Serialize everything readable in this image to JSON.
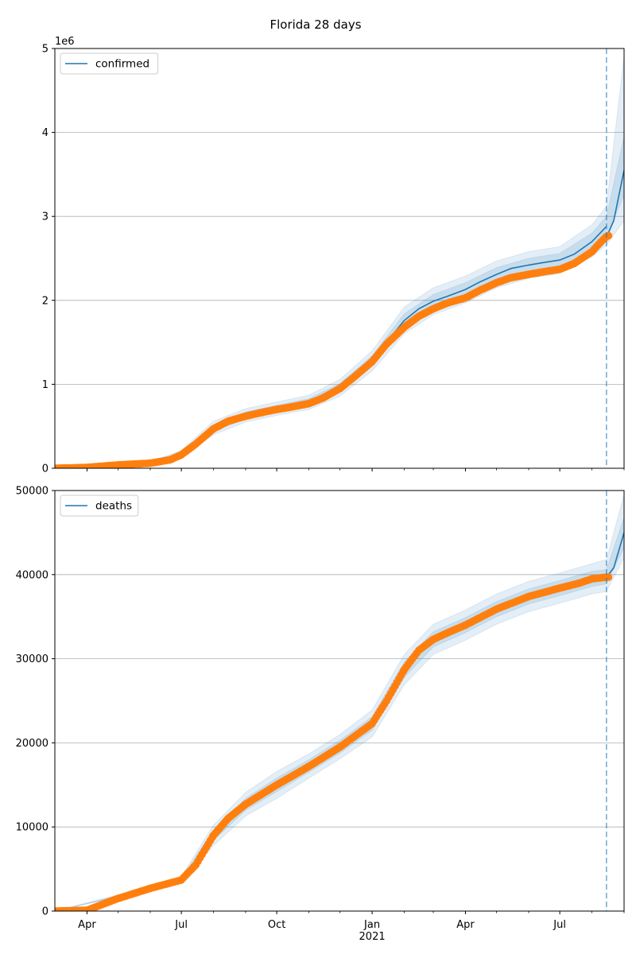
{
  "figure_title": "Florida 28 days",
  "x_axis": {
    "start": "2020-03-01",
    "end": "2021-09-01",
    "major_ticks": [
      {
        "date": "2020-04-01",
        "label": "Apr"
      },
      {
        "date": "2020-07-01",
        "label": "Jul"
      },
      {
        "date": "2020-10-01",
        "label": "Oct"
      },
      {
        "date": "2021-01-01",
        "label": "Jan"
      },
      {
        "date": "2021-04-01",
        "label": "Apr"
      },
      {
        "date": "2021-07-01",
        "label": "Jul"
      }
    ],
    "year_label": "2021",
    "year_label_date": "2021-01-01",
    "minor_tick_dates": [
      "2020-05-01",
      "2020-06-01",
      "2020-08-01",
      "2020-09-01",
      "2020-11-01",
      "2020-12-01",
      "2021-02-01",
      "2021-03-01",
      "2021-05-01",
      "2021-06-01",
      "2021-08-01",
      "2021-09-01"
    ]
  },
  "forecast_start": "2021-08-15",
  "colors": {
    "model_line": "#1f77b4",
    "band": "#1f77b4",
    "observed": "#ff7f0e",
    "forecast_line": "#1f77b4",
    "grid": "#b0b0b0",
    "axis": "#000000"
  },
  "chart_data": [
    {
      "type": "line",
      "name": "confirmed",
      "legend": "confirmed",
      "y_multiplier_label": "1e6",
      "ylim": [
        0,
        5
      ],
      "yticks": [
        0,
        1,
        2,
        3,
        4,
        5
      ],
      "ytick_labels": [
        "0",
        "1",
        "2",
        "3",
        "4",
        "5"
      ],
      "grid": "horizontal",
      "legend_placement": "top-left",
      "model": [
        [
          "2020-03-01",
          0.0
        ],
        [
          "2020-04-01",
          0.01
        ],
        [
          "2020-05-01",
          0.04
        ],
        [
          "2020-06-01",
          0.06
        ],
        [
          "2020-06-20",
          0.1
        ],
        [
          "2020-07-01",
          0.17
        ],
        [
          "2020-07-15",
          0.3
        ],
        [
          "2020-08-01",
          0.48
        ],
        [
          "2020-08-15",
          0.57
        ],
        [
          "2020-09-01",
          0.63
        ],
        [
          "2020-09-15",
          0.67
        ],
        [
          "2020-10-01",
          0.71
        ],
        [
          "2020-10-15",
          0.74
        ],
        [
          "2020-11-01",
          0.78
        ],
        [
          "2020-11-15",
          0.85
        ],
        [
          "2020-12-01",
          0.96
        ],
        [
          "2020-12-15",
          1.1
        ],
        [
          "2021-01-01",
          1.28
        ],
        [
          "2021-01-15",
          1.5
        ],
        [
          "2021-02-01",
          1.76
        ],
        [
          "2021-02-15",
          1.9
        ],
        [
          "2021-03-01",
          1.99
        ],
        [
          "2021-03-15",
          2.05
        ],
        [
          "2021-04-01",
          2.13
        ],
        [
          "2021-04-15",
          2.22
        ],
        [
          "2021-05-01",
          2.31
        ],
        [
          "2021-05-15",
          2.38
        ],
        [
          "2021-06-01",
          2.42
        ],
        [
          "2021-06-15",
          2.45
        ],
        [
          "2021-07-01",
          2.48
        ],
        [
          "2021-07-15",
          2.55
        ],
        [
          "2021-08-01",
          2.7
        ],
        [
          "2021-08-15",
          2.88
        ]
      ],
      "forecast": [
        [
          "2021-08-15",
          2.75
        ],
        [
          "2021-08-22",
          2.95
        ],
        [
          "2021-09-01",
          3.55
        ]
      ],
      "band_inner": [
        [
          "2020-03-01",
          0.0,
          0.0
        ],
        [
          "2020-06-01",
          0.05,
          0.07
        ],
        [
          "2020-07-01",
          0.15,
          0.19
        ],
        [
          "2020-08-01",
          0.44,
          0.52
        ],
        [
          "2020-09-01",
          0.59,
          0.67
        ],
        [
          "2020-10-01",
          0.67,
          0.75
        ],
        [
          "2020-11-01",
          0.74,
          0.83
        ],
        [
          "2020-12-01",
          0.91,
          1.01
        ],
        [
          "2021-01-01",
          1.22,
          1.34
        ],
        [
          "2021-02-01",
          1.68,
          1.84
        ],
        [
          "2021-03-01",
          1.91,
          2.07
        ],
        [
          "2021-04-01",
          2.05,
          2.21
        ],
        [
          "2021-05-01",
          2.23,
          2.39
        ],
        [
          "2021-06-01",
          2.34,
          2.5
        ],
        [
          "2021-07-01",
          2.4,
          2.56
        ],
        [
          "2021-08-01",
          2.6,
          2.8
        ],
        [
          "2021-08-15",
          2.76,
          3.0
        ],
        [
          "2021-09-01",
          3.25,
          3.95
        ]
      ],
      "band_outer": [
        [
          "2020-03-01",
          0.0,
          0.0
        ],
        [
          "2020-06-01",
          0.04,
          0.08
        ],
        [
          "2020-07-01",
          0.13,
          0.21
        ],
        [
          "2020-08-01",
          0.4,
          0.56
        ],
        [
          "2020-09-01",
          0.55,
          0.71
        ],
        [
          "2020-10-01",
          0.63,
          0.79
        ],
        [
          "2020-11-01",
          0.7,
          0.87
        ],
        [
          "2020-12-01",
          0.86,
          1.06
        ],
        [
          "2021-01-01",
          1.16,
          1.4
        ],
        [
          "2021-02-01",
          1.6,
          1.92
        ],
        [
          "2021-03-01",
          1.83,
          2.15
        ],
        [
          "2021-04-01",
          1.97,
          2.29
        ],
        [
          "2021-05-01",
          2.15,
          2.47
        ],
        [
          "2021-06-01",
          2.26,
          2.58
        ],
        [
          "2021-07-01",
          2.32,
          2.64
        ],
        [
          "2021-08-01",
          2.52,
          2.9
        ],
        [
          "2021-08-15",
          2.66,
          3.12
        ],
        [
          "2021-09-01",
          2.95,
          4.9
        ]
      ],
      "observed": [
        [
          "2020-03-01",
          0.0
        ],
        [
          "2020-04-01",
          0.01
        ],
        [
          "2020-05-01",
          0.04
        ],
        [
          "2020-06-01",
          0.06
        ],
        [
          "2020-06-20",
          0.1
        ],
        [
          "2020-07-01",
          0.16
        ],
        [
          "2020-07-15",
          0.29
        ],
        [
          "2020-08-01",
          0.47
        ],
        [
          "2020-08-15",
          0.56
        ],
        [
          "2020-09-01",
          0.62
        ],
        [
          "2020-09-15",
          0.66
        ],
        [
          "2020-10-01",
          0.7
        ],
        [
          "2020-10-15",
          0.73
        ],
        [
          "2020-11-01",
          0.77
        ],
        [
          "2020-11-15",
          0.84
        ],
        [
          "2020-12-01",
          0.95
        ],
        [
          "2020-12-15",
          1.09
        ],
        [
          "2021-01-01",
          1.27
        ],
        [
          "2021-01-15",
          1.48
        ],
        [
          "2021-02-01",
          1.68
        ],
        [
          "2021-02-15",
          1.81
        ],
        [
          "2021-03-01",
          1.9
        ],
        [
          "2021-03-15",
          1.97
        ],
        [
          "2021-04-01",
          2.03
        ],
        [
          "2021-04-15",
          2.12
        ],
        [
          "2021-05-01",
          2.21
        ],
        [
          "2021-05-15",
          2.27
        ],
        [
          "2021-06-01",
          2.31
        ],
        [
          "2021-06-15",
          2.34
        ],
        [
          "2021-07-01",
          2.37
        ],
        [
          "2021-07-15",
          2.44
        ],
        [
          "2021-08-01",
          2.58
        ],
        [
          "2021-08-10",
          2.7
        ],
        [
          "2021-08-15",
          2.76
        ],
        [
          "2021-08-17",
          2.77
        ]
      ]
    },
    {
      "type": "line",
      "name": "deaths",
      "legend": "deaths",
      "ylim": [
        0,
        50000
      ],
      "yticks": [
        0,
        10000,
        20000,
        30000,
        40000,
        50000
      ],
      "ytick_labels": [
        "0",
        "10000",
        "20000",
        "30000",
        "40000",
        "50000"
      ],
      "grid": "horizontal",
      "legend_placement": "top-left",
      "model": [
        [
          "2020-03-01",
          0
        ],
        [
          "2020-04-01",
          100
        ],
        [
          "2020-05-01",
          1500
        ],
        [
          "2020-06-01",
          2700
        ],
        [
          "2020-07-01",
          3700
        ],
        [
          "2020-07-15",
          5500
        ],
        [
          "2020-08-01",
          9000
        ],
        [
          "2020-08-15",
          11000
        ],
        [
          "2020-09-01",
          12700
        ],
        [
          "2020-10-01",
          15000
        ],
        [
          "2020-11-01",
          17200
        ],
        [
          "2020-12-01",
          19500
        ],
        [
          "2021-01-01",
          22300
        ],
        [
          "2021-01-15",
          25000
        ],
        [
          "2021-02-01",
          28700
        ],
        [
          "2021-02-15",
          31000
        ],
        [
          "2021-03-01",
          32300
        ],
        [
          "2021-03-15",
          33100
        ],
        [
          "2021-04-01",
          34000
        ],
        [
          "2021-05-01",
          35900
        ],
        [
          "2021-06-01",
          37400
        ],
        [
          "2021-07-01",
          38400
        ],
        [
          "2021-07-20",
          39000
        ],
        [
          "2021-08-01",
          39500
        ],
        [
          "2021-08-15",
          39700
        ]
      ],
      "forecast": [
        [
          "2021-08-15",
          39700
        ],
        [
          "2021-08-22",
          40800
        ],
        [
          "2021-09-01",
          45000
        ]
      ],
      "band_inner": [
        [
          "2020-03-01",
          0,
          0
        ],
        [
          "2020-06-01",
          2600,
          2800
        ],
        [
          "2020-07-01",
          3500,
          3900
        ],
        [
          "2020-08-01",
          8400,
          9600
        ],
        [
          "2020-09-01",
          12000,
          13400
        ],
        [
          "2020-10-01",
          14200,
          15800
        ],
        [
          "2020-11-01",
          16500,
          18000
        ],
        [
          "2020-12-01",
          18800,
          20300
        ],
        [
          "2021-01-01",
          21500,
          23100
        ],
        [
          "2021-02-01",
          27800,
          29600
        ],
        [
          "2021-03-01",
          31400,
          33200
        ],
        [
          "2021-04-01",
          33100,
          34900
        ],
        [
          "2021-05-01",
          35000,
          36800
        ],
        [
          "2021-06-01",
          36500,
          38300
        ],
        [
          "2021-07-01",
          37500,
          39300
        ],
        [
          "2021-08-01",
          38600,
          40400
        ],
        [
          "2021-08-15",
          38900,
          40600
        ],
        [
          "2021-09-01",
          43200,
          46800
        ]
      ],
      "band_outer": [
        [
          "2020-03-01",
          0,
          0
        ],
        [
          "2020-06-01",
          2500,
          2900
        ],
        [
          "2020-07-01",
          3300,
          4100
        ],
        [
          "2020-08-01",
          7800,
          10200
        ],
        [
          "2020-09-01",
          11300,
          14100
        ],
        [
          "2020-10-01",
          13400,
          16600
        ],
        [
          "2020-11-01",
          15800,
          18700
        ],
        [
          "2020-12-01",
          18100,
          21000
        ],
        [
          "2021-01-01",
          20700,
          23900
        ],
        [
          "2021-02-01",
          26900,
          30500
        ],
        [
          "2021-03-01",
          30500,
          34100
        ],
        [
          "2021-04-01",
          32200,
          35800
        ],
        [
          "2021-05-01",
          34100,
          37700
        ],
        [
          "2021-06-01",
          35600,
          39200
        ],
        [
          "2021-07-01",
          36600,
          40200
        ],
        [
          "2021-08-01",
          37700,
          41300
        ],
        [
          "2021-08-15",
          38000,
          41800
        ],
        [
          "2021-09-01",
          42000,
          49500
        ]
      ],
      "observed": [
        [
          "2020-03-01",
          0
        ],
        [
          "2020-04-01",
          100
        ],
        [
          "2020-05-01",
          1500
        ],
        [
          "2020-06-01",
          2700
        ],
        [
          "2020-07-01",
          3700
        ],
        [
          "2020-07-15",
          5500
        ],
        [
          "2020-08-01",
          9000
        ],
        [
          "2020-08-15",
          11000
        ],
        [
          "2020-09-01",
          12700
        ],
        [
          "2020-10-01",
          15000
        ],
        [
          "2020-11-01",
          17200
        ],
        [
          "2020-12-01",
          19500
        ],
        [
          "2021-01-01",
          22300
        ],
        [
          "2021-01-15",
          25000
        ],
        [
          "2021-02-01",
          28700
        ],
        [
          "2021-02-15",
          31000
        ],
        [
          "2021-03-01",
          32300
        ],
        [
          "2021-03-15",
          33100
        ],
        [
          "2021-04-01",
          34000
        ],
        [
          "2021-05-01",
          35900
        ],
        [
          "2021-06-01",
          37400
        ],
        [
          "2021-07-01",
          38400
        ],
        [
          "2021-07-20",
          39000
        ],
        [
          "2021-08-01",
          39500
        ],
        [
          "2021-08-15",
          39700
        ],
        [
          "2021-08-17",
          39700
        ]
      ]
    }
  ]
}
